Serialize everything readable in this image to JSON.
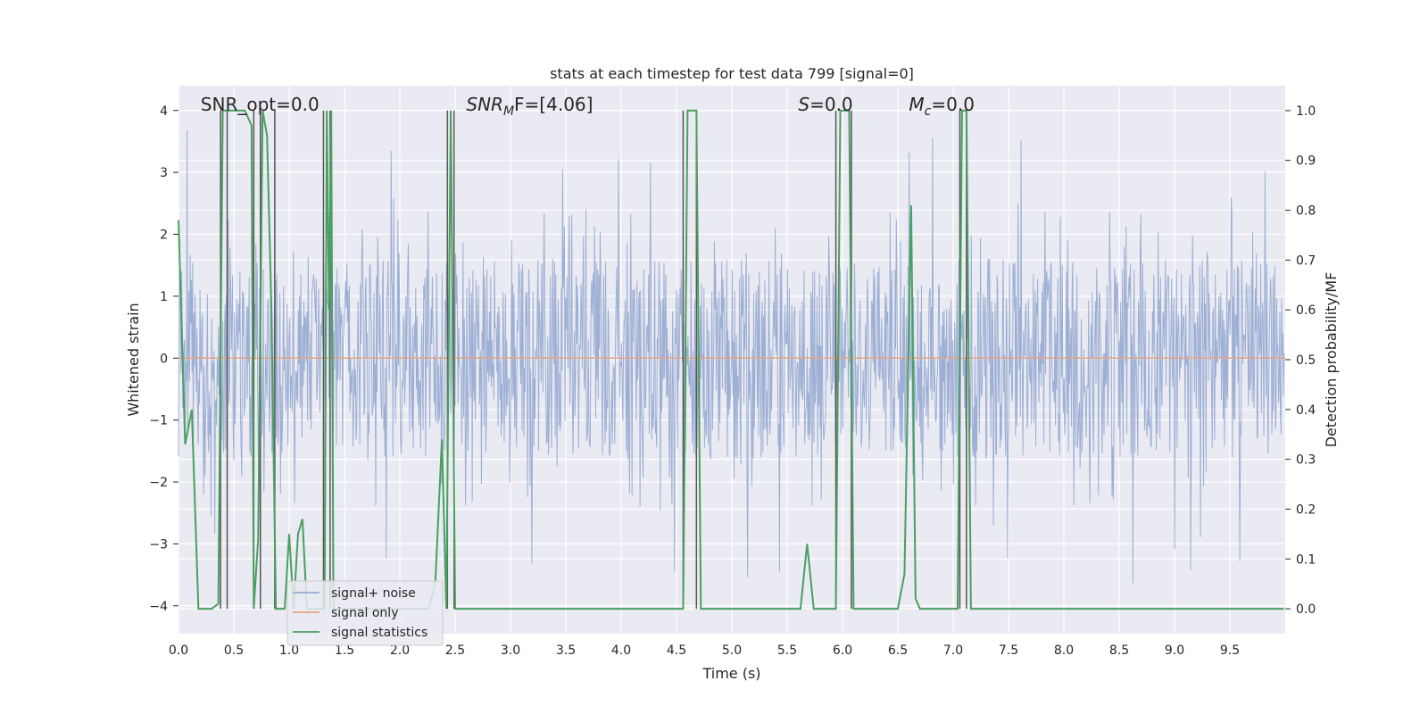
{
  "chart_data": {
    "type": "line",
    "title": "stats at each timestep for test data 799 [signal=0]",
    "xlabel": "Time (s)",
    "ylabel": "Whitened strain",
    "y2label": "Detection probability/MF",
    "xlim": [
      0.0,
      10.0
    ],
    "ylim": [
      -4.45,
      4.4
    ],
    "y2lim": [
      -0.05,
      1.05
    ],
    "xticks": [
      0.0,
      0.5,
      1.0,
      1.5,
      2.0,
      2.5,
      3.0,
      3.5,
      4.0,
      4.5,
      5.0,
      5.5,
      6.0,
      6.5,
      7.0,
      7.5,
      8.0,
      8.5,
      9.0,
      9.5
    ],
    "xtick_labels": [
      "0.0",
      "0.5",
      "1.0",
      "1.5",
      "2.0",
      "2.5",
      "3.0",
      "3.5",
      "4.0",
      "4.5",
      "5.0",
      "5.5",
      "6.0",
      "6.5",
      "7.0",
      "7.5",
      "8.0",
      "8.5",
      "9.0",
      "9.5"
    ],
    "yticks": [
      -4,
      -3,
      -2,
      -1,
      0,
      1,
      2,
      3,
      4
    ],
    "ytick_labels": [
      "−4",
      "−3",
      "−2",
      "−1",
      "0",
      "1",
      "2",
      "3",
      "4"
    ],
    "y2ticks": [
      0.0,
      0.1,
      0.2,
      0.3,
      0.4,
      0.5,
      0.6,
      0.7,
      0.8,
      0.9,
      1.0
    ],
    "y2tick_labels": [
      "0.0",
      "0.1",
      "0.2",
      "0.3",
      "0.4",
      "0.5",
      "0.6",
      "0.7",
      "0.8",
      "0.9",
      "1.0"
    ],
    "grid": true,
    "legend_position": "bottom-left",
    "annotations": [
      {
        "text": "SNR_opt=0.0",
        "x": 0.2
      },
      {
        "text": "SNR_MF=[4.06]",
        "x": 2.6,
        "math": "SNR",
        "sub": "M",
        "post": "F=[4.06]"
      },
      {
        "text": "S=0.0",
        "x": 5.6,
        "math": "S",
        "post": "=0.0"
      },
      {
        "text": "M_c=0.0",
        "x": 6.6,
        "math": "M",
        "sub": "c",
        "post": "=0.0"
      }
    ],
    "series": [
      {
        "name": "signal+ noise",
        "color": "#95a9d0",
        "kind": "noise",
        "envelope": {
          "typical": 1.6,
          "peak_max": 4.0,
          "peak_min": -4.0
        }
      },
      {
        "name": "signal only",
        "color": "#e0a687",
        "x": [
          0.0,
          10.0
        ],
        "y": [
          0.0,
          0.0
        ]
      },
      {
        "name": "signal statistics",
        "color": "#4a9f61",
        "axis": "right",
        "x": [
          0.0,
          0.06,
          0.12,
          0.18,
          0.24,
          0.3,
          0.36,
          0.4,
          0.44,
          0.48,
          0.54,
          0.6,
          0.66,
          0.68,
          0.72,
          0.76,
          0.8,
          0.84,
          0.88,
          0.92,
          0.96,
          1.0,
          1.04,
          1.08,
          1.12,
          1.16,
          1.2,
          1.24,
          1.28,
          1.32,
          1.34,
          1.36,
          1.38,
          1.4,
          1.44,
          2.2,
          2.26,
          2.32,
          2.38,
          2.42,
          2.46,
          2.5,
          2.54,
          2.6,
          4.5,
          4.56,
          4.6,
          4.64,
          4.68,
          4.72,
          4.76,
          5.56,
          5.62,
          5.68,
          5.74,
          5.8,
          5.94,
          5.98,
          6.02,
          6.06,
          6.1,
          6.14,
          6.2,
          6.4,
          6.5,
          6.56,
          6.62,
          6.66,
          6.7,
          6.8,
          7.04,
          7.08,
          7.12,
          7.16,
          7.2,
          9.99
        ],
        "y": [
          0.78,
          0.33,
          0.4,
          0.0,
          0.0,
          0.0,
          0.01,
          1.0,
          1.0,
          1.0,
          1.0,
          1.0,
          0.97,
          0.0,
          0.14,
          1.0,
          0.95,
          0.6,
          0.0,
          0.0,
          0.0,
          0.15,
          0.0,
          0.15,
          0.18,
          0.0,
          0.0,
          0.0,
          0.0,
          0.0,
          1.0,
          0.6,
          1.0,
          0.0,
          0.0,
          0.0,
          0.0,
          0.05,
          0.34,
          0.0,
          1.0,
          0.0,
          0.0,
          0.0,
          0.0,
          0.0,
          1.0,
          1.0,
          1.0,
          0.0,
          0.0,
          0.0,
          0.0,
          0.13,
          0.0,
          0.0,
          0.0,
          1.0,
          1.0,
          1.0,
          0.0,
          0.0,
          0.0,
          0.0,
          0.0,
          0.07,
          0.81,
          0.02,
          0.0,
          0.0,
          0.0,
          1.0,
          1.0,
          0.0,
          0.0,
          0.0
        ]
      }
    ],
    "vertical_markers": {
      "color": "#555555",
      "x": [
        0.38,
        0.44,
        0.68,
        0.74,
        0.87,
        1.31,
        1.37,
        2.43,
        2.49,
        4.56,
        4.68,
        5.94,
        6.08,
        7.06,
        7.12
      ]
    }
  }
}
